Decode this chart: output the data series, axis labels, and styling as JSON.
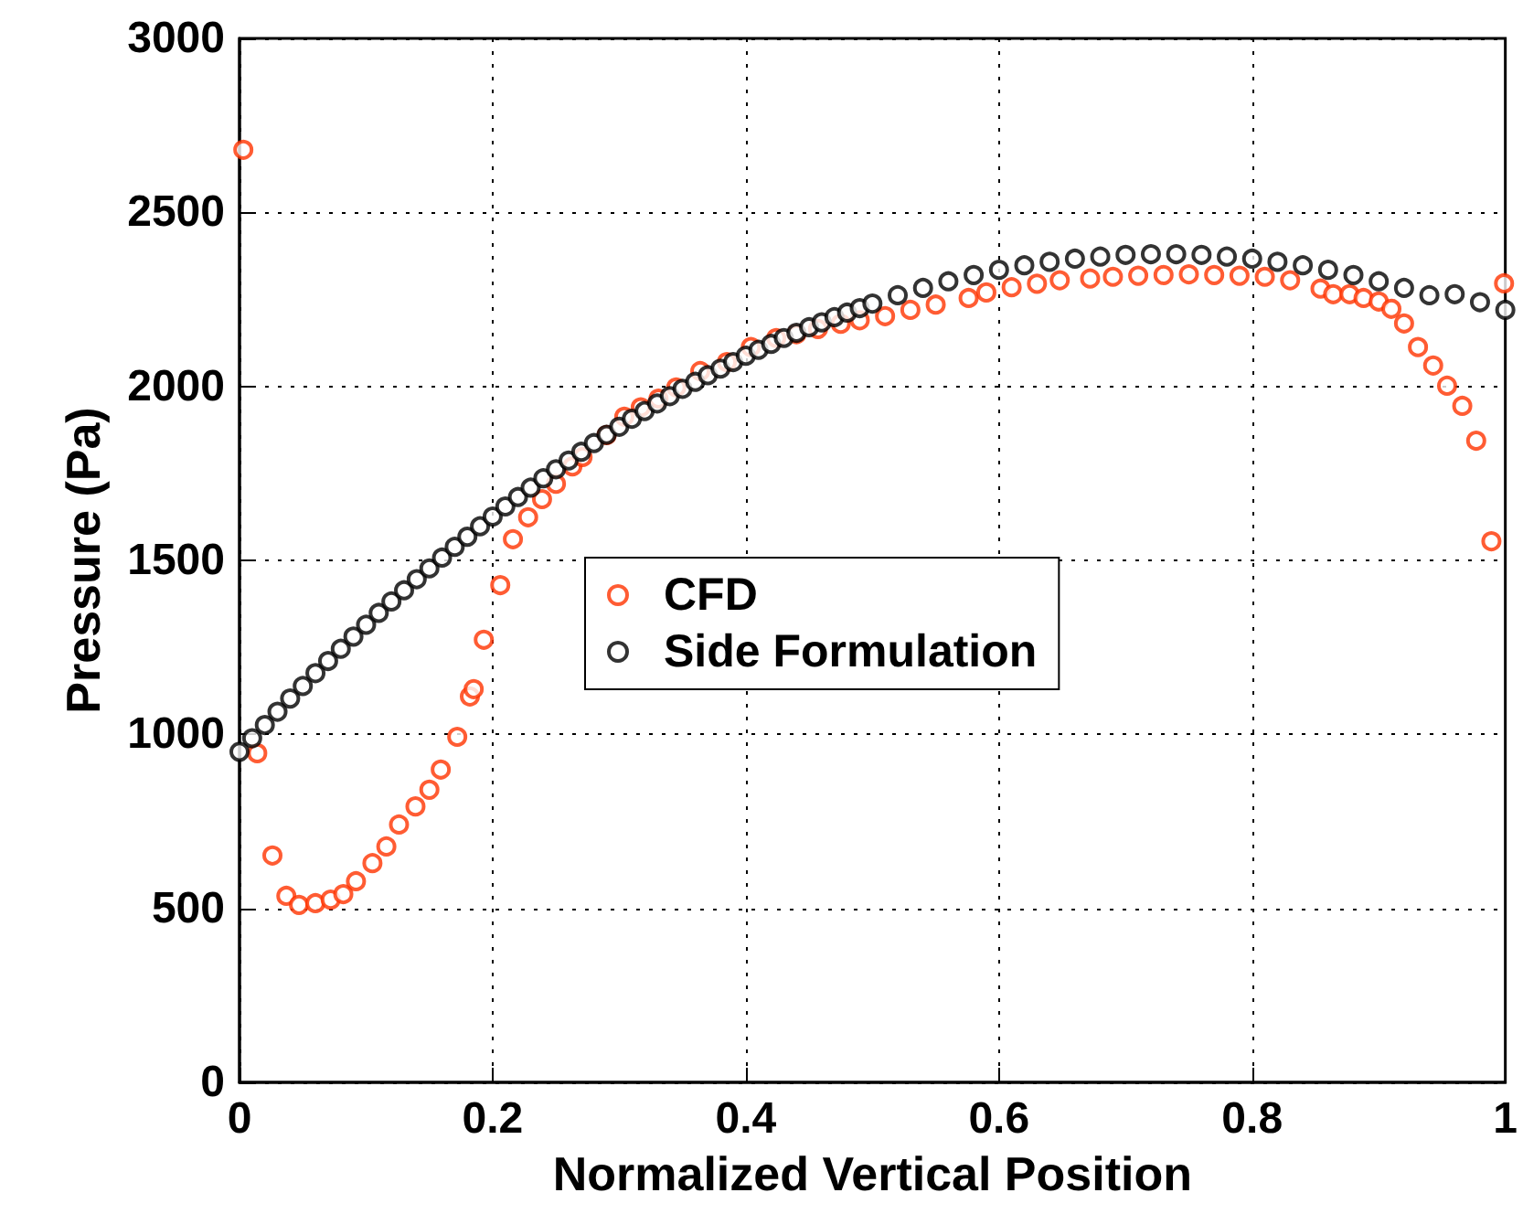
{
  "chart_data": {
    "type": "scatter",
    "xlabel": "Normalized Vertical Position",
    "ylabel": "Pressure (Pa)",
    "xlim": [
      0,
      1
    ],
    "xticks": [
      0,
      0.2,
      0.4,
      0.6,
      0.8,
      1
    ],
    "ylim": [
      0,
      3000
    ],
    "yticks": [
      0,
      500,
      1000,
      1500,
      2000,
      2500,
      3000
    ],
    "grid": true,
    "legend": "center",
    "marker": "circle",
    "series": [
      {
        "name": "CFD",
        "color": "#ff3300",
        "x": [
          0.003,
          0.014,
          0.026,
          0.037,
          0.047,
          0.06,
          0.072,
          0.082,
          0.092,
          0.105,
          0.116,
          0.126,
          0.139,
          0.15,
          0.159,
          0.172,
          0.182,
          0.185,
          0.193,
          0.206,
          0.216,
          0.228,
          0.239,
          0.25,
          0.263,
          0.271,
          0.29,
          0.304,
          0.317,
          0.331,
          0.345,
          0.364,
          0.385,
          0.404,
          0.424,
          0.44,
          0.457,
          0.475,
          0.49,
          0.51,
          0.53,
          0.55,
          0.576,
          0.59,
          0.61,
          0.63,
          0.648,
          0.672,
          0.69,
          0.71,
          0.73,
          0.75,
          0.77,
          0.79,
          0.81,
          0.83,
          0.854,
          0.864,
          0.877,
          0.888,
          0.9,
          0.91,
          0.92,
          0.931,
          0.943,
          0.954,
          0.966,
          0.977,
          0.989,
          0.999
        ],
        "values": [
          2680,
          946,
          652,
          536,
          510,
          515,
          525,
          541,
          578,
          630,
          678,
          741,
          793,
          841,
          899,
          993,
          1109,
          1130,
          1272,
          1429,
          1561,
          1624,
          1676,
          1720,
          1770,
          1797,
          1860,
          1913,
          1940,
          1965,
          1997,
          2044,
          2070,
          2113,
          2139,
          2150,
          2165,
          2180,
          2190,
          2202,
          2220,
          2235,
          2254,
          2270,
          2285,
          2295,
          2305,
          2310,
          2315,
          2318,
          2320,
          2322,
          2320,
          2318,
          2315,
          2305,
          2281,
          2265,
          2265,
          2254,
          2244,
          2223,
          2181,
          2113,
          2060,
          2002,
          1944,
          1844,
          1555,
          2296
        ]
      },
      {
        "name": "Side Formulation",
        "color": "#000000",
        "x": [
          0,
          0.01,
          0.02,
          0.03,
          0.04,
          0.05,
          0.06,
          0.07,
          0.08,
          0.09,
          0.1,
          0.11,
          0.12,
          0.13,
          0.14,
          0.15,
          0.16,
          0.17,
          0.18,
          0.19,
          0.2,
          0.21,
          0.22,
          0.23,
          0.24,
          0.25,
          0.26,
          0.27,
          0.28,
          0.29,
          0.3,
          0.31,
          0.32,
          0.33,
          0.34,
          0.35,
          0.36,
          0.37,
          0.38,
          0.39,
          0.4,
          0.41,
          0.42,
          0.43,
          0.44,
          0.45,
          0.46,
          0.47,
          0.48,
          0.49,
          0.5,
          0.52,
          0.54,
          0.56,
          0.58,
          0.6,
          0.62,
          0.64,
          0.66,
          0.68,
          0.7,
          0.72,
          0.74,
          0.76,
          0.78,
          0.8,
          0.82,
          0.84,
          0.86,
          0.88,
          0.9,
          0.92,
          0.94,
          0.96,
          0.98,
          1
        ],
        "values": [
          950,
          989,
          1027,
          1065,
          1103,
          1139,
          1176,
          1211,
          1246,
          1281,
          1315,
          1349,
          1382,
          1414,
          1446,
          1477,
          1508,
          1539,
          1568,
          1598,
          1626,
          1655,
          1682,
          1709,
          1736,
          1762,
          1787,
          1812,
          1837,
          1861,
          1884,
          1907,
          1929,
          1951,
          1972,
          1993,
          2013,
          2032,
          2051,
          2070,
          2088,
          2105,
          2122,
          2139,
          2154,
          2170,
          2184,
          2199,
          2212,
          2225,
          2238,
          2262,
          2283,
          2302,
          2320,
          2335,
          2348,
          2358,
          2367,
          2373,
          2378,
          2380,
          2380,
          2378,
          2373,
          2367,
          2358,
          2348,
          2335,
          2320,
          2302,
          2283,
          2262,
          2265,
          2242,
          2220
        ]
      }
    ]
  }
}
